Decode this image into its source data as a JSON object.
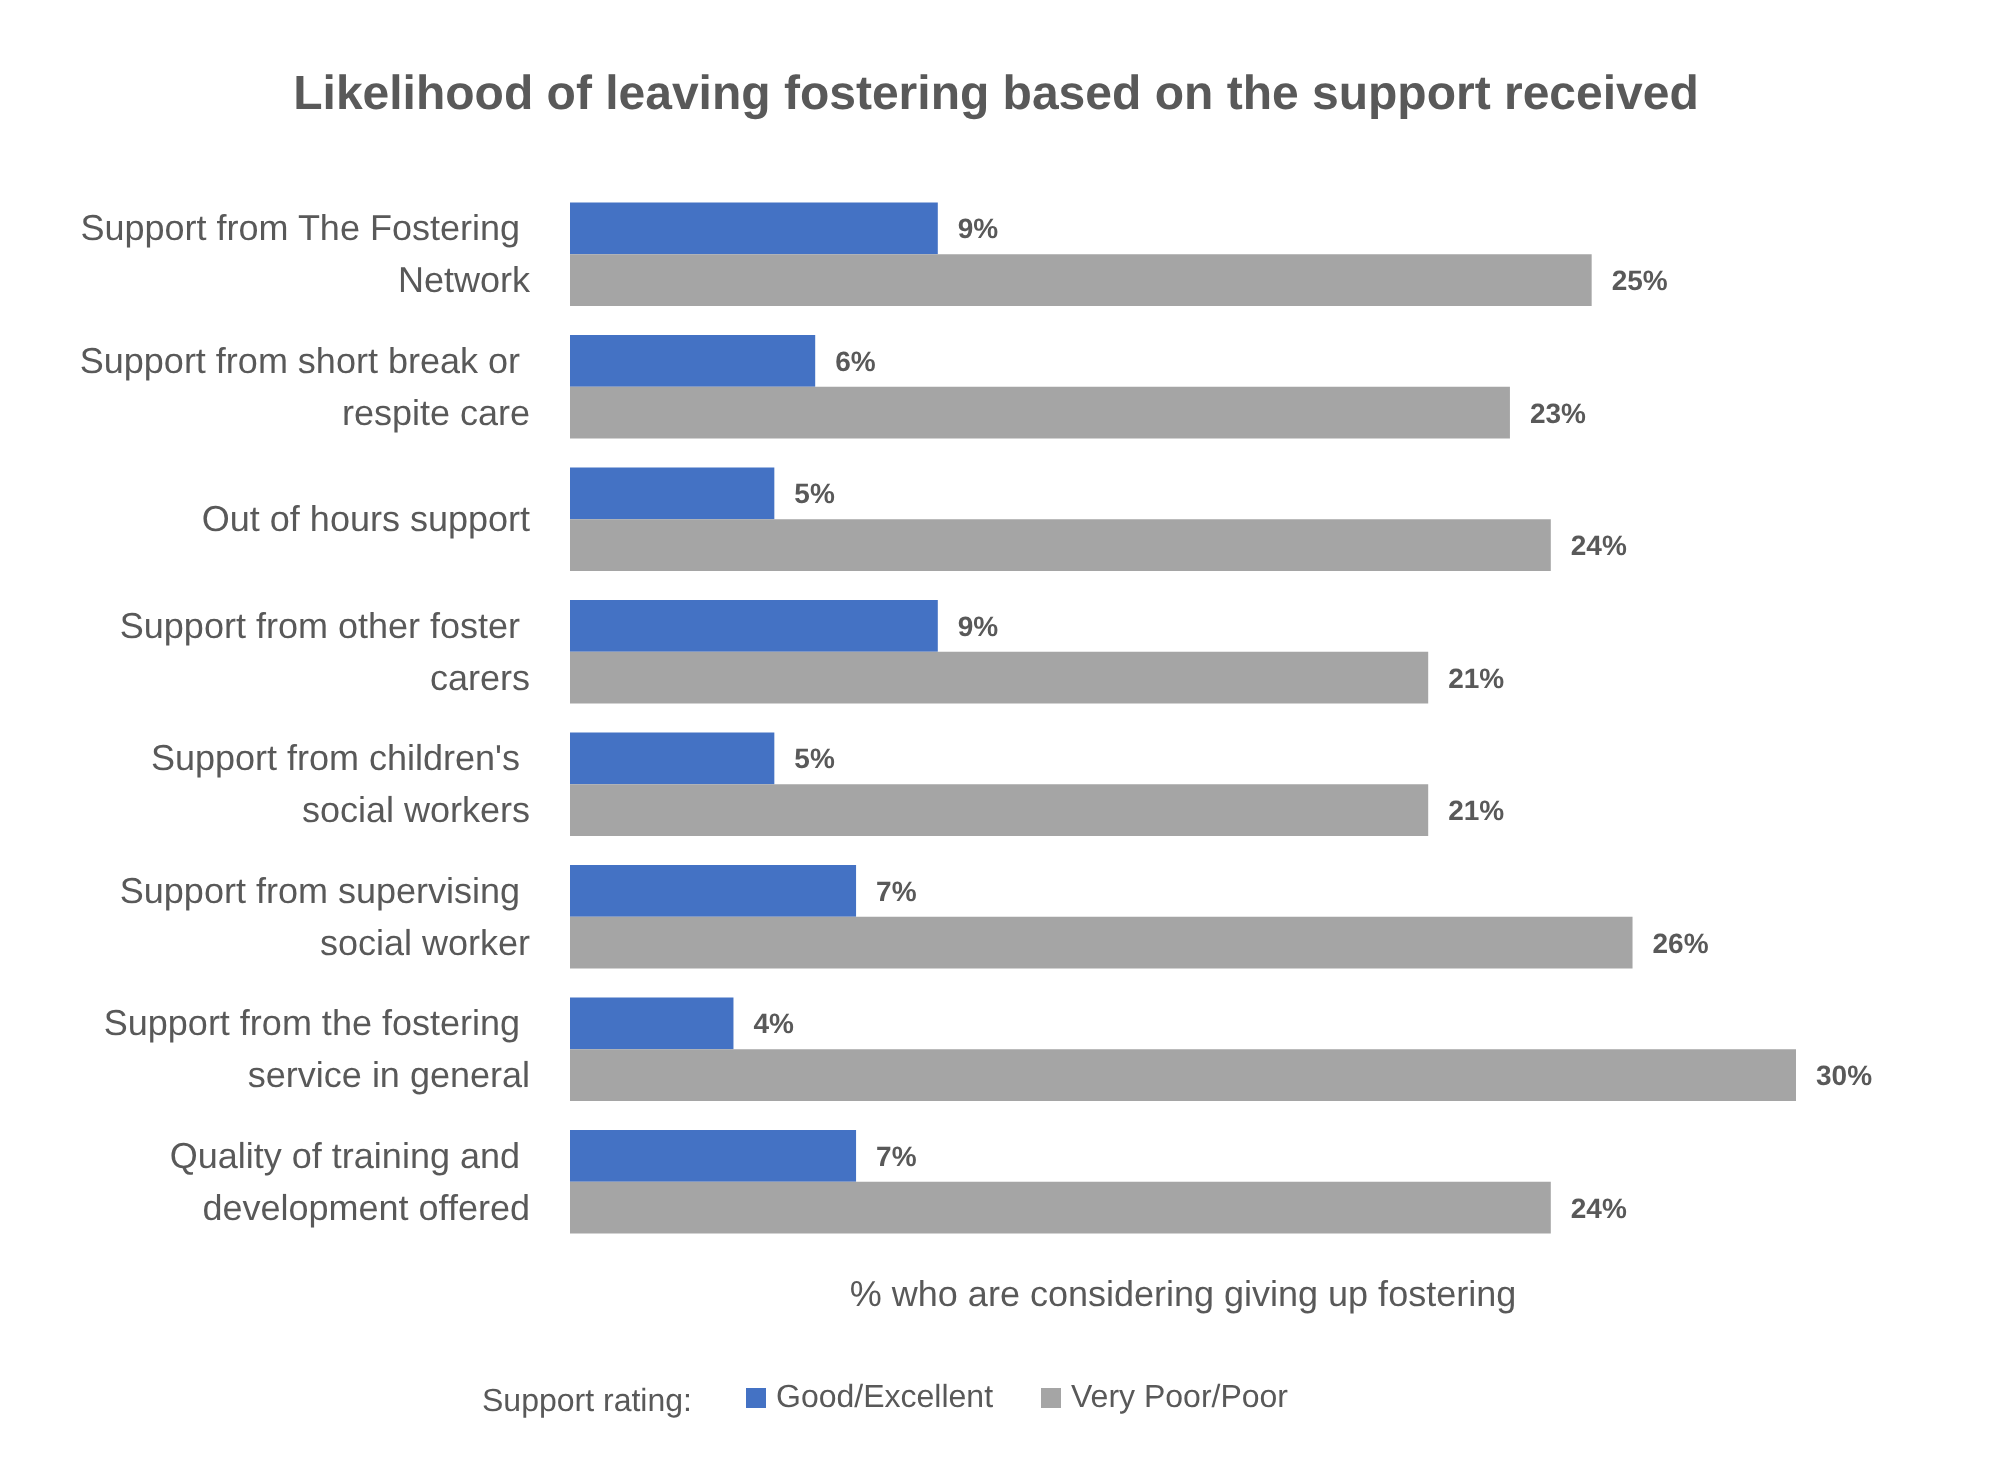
{
  "chart_data": {
    "type": "bar",
    "orientation": "horizontal",
    "title": "Likelihood of leaving fostering based on the support received",
    "xlabel": "% who are considering giving up fostering",
    "legend_title": "Support rating:",
    "legend": "bottom",
    "grid": false,
    "categories": [
      "Support from The Fostering Network",
      "Support from short break or respite care",
      "Out of hours support",
      "Support from other foster carers",
      "Support from children's social workers",
      "Support from supervising social worker",
      "Support from the fostering service in general",
      "Quality of training and development offered"
    ],
    "series": [
      {
        "name": "Good/Excellent",
        "color": "#4472c4",
        "values": [
          9,
          6,
          5,
          9,
          5,
          7,
          4,
          7
        ],
        "value_labels": [
          "9%",
          "6%",
          "5%",
          "9%",
          "5%",
          "7%",
          "4%",
          "7%"
        ]
      },
      {
        "name": "Very Poor/Poor",
        "color": "#a5a5a5",
        "values": [
          25,
          23,
          24,
          21,
          21,
          26,
          30,
          24
        ],
        "value_labels": [
          "25%",
          "23%",
          "24%",
          "21%",
          "21%",
          "26%",
          "30%",
          "24%"
        ]
      }
    ]
  }
}
